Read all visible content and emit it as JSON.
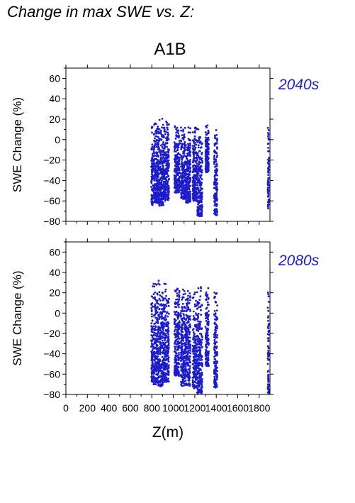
{
  "page_title": "Change in max SWE vs. Z:",
  "scenario": "A1B",
  "colors": {
    "points": "#1c1cc8",
    "panel_label": "#1c1cc8",
    "axes": "#000000"
  },
  "chart_data": [
    {
      "type": "scatter",
      "panel_label": "2040s",
      "xlabel": "Z(m)",
      "ylabel": "SWE Change (%)",
      "xlim": [
        0,
        1900
      ],
      "ylim": [
        -80,
        70
      ],
      "yticks": [
        -80,
        -60,
        -40,
        -20,
        0,
        20,
        40,
        60
      ],
      "xticks": [
        0,
        200,
        400,
        600,
        800,
        1000,
        1200,
        1400,
        1600,
        1800
      ],
      "grid": false,
      "clusters": [
        {
          "x_range": [
            795,
            810
          ],
          "y_range": [
            -64,
            17
          ]
        },
        {
          "x_range": [
            815,
            860
          ],
          "y_range": [
            -62,
            20
          ]
        },
        {
          "x_range": [
            860,
            910
          ],
          "y_range": [
            -66,
            22
          ]
        },
        {
          "x_range": [
            910,
            960
          ],
          "y_range": [
            -60,
            20
          ]
        },
        {
          "x_range": [
            1010,
            1060
          ],
          "y_range": [
            -52,
            15
          ]
        },
        {
          "x_range": [
            1070,
            1110
          ],
          "y_range": [
            -58,
            15
          ]
        },
        {
          "x_range": [
            1110,
            1160
          ],
          "y_range": [
            -62,
            15
          ]
        },
        {
          "x_range": [
            1180,
            1220
          ],
          "y_range": [
            -60,
            15
          ]
        },
        {
          "x_range": [
            1220,
            1270
          ],
          "y_range": [
            -75,
            15
          ]
        },
        {
          "x_range": [
            1300,
            1330
          ],
          "y_range": [
            -32,
            15
          ]
        },
        {
          "x_range": [
            1380,
            1410
          ],
          "y_range": [
            -74,
            18
          ]
        },
        {
          "x_range": [
            1880,
            1890
          ],
          "y_range": [
            -70,
            15
          ]
        }
      ]
    },
    {
      "type": "scatter",
      "panel_label": "2080s",
      "xlabel": "Z(m)",
      "ylabel": "SWE Change (%)",
      "xlim": [
        0,
        1900
      ],
      "ylim": [
        -80,
        70
      ],
      "yticks": [
        -80,
        -60,
        -40,
        -20,
        0,
        20,
        40,
        60
      ],
      "xticks": [
        0,
        200,
        400,
        600,
        800,
        1000,
        1200,
        1400,
        1600,
        1800
      ],
      "grid": false,
      "clusters": [
        {
          "x_range": [
            795,
            810
          ],
          "y_range": [
            -68,
            32
          ]
        },
        {
          "x_range": [
            815,
            860
          ],
          "y_range": [
            -70,
            33
          ]
        },
        {
          "x_range": [
            860,
            910
          ],
          "y_range": [
            -72,
            34
          ]
        },
        {
          "x_range": [
            910,
            960
          ],
          "y_range": [
            -68,
            34
          ]
        },
        {
          "x_range": [
            1010,
            1060
          ],
          "y_range": [
            -62,
            30
          ]
        },
        {
          "x_range": [
            1070,
            1110
          ],
          "y_range": [
            -72,
            30
          ]
        },
        {
          "x_range": [
            1110,
            1160
          ],
          "y_range": [
            -72,
            30
          ]
        },
        {
          "x_range": [
            1180,
            1220
          ],
          "y_range": [
            -74,
            30
          ]
        },
        {
          "x_range": [
            1220,
            1270
          ],
          "y_range": [
            -79,
            30
          ]
        },
        {
          "x_range": [
            1300,
            1330
          ],
          "y_range": [
            -52,
            25
          ]
        },
        {
          "x_range": [
            1380,
            1410
          ],
          "y_range": [
            -74,
            30
          ]
        },
        {
          "x_range": [
            1880,
            1890
          ],
          "y_range": [
            -79,
            30
          ]
        }
      ]
    }
  ]
}
